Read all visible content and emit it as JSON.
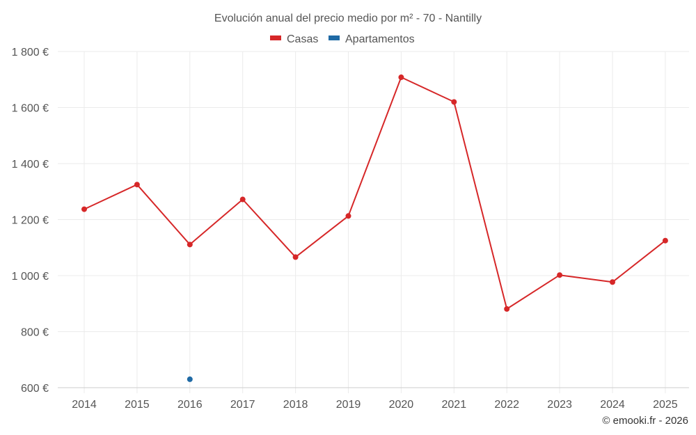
{
  "chart_data": {
    "type": "line",
    "title": "Evolución anual del precio medio por m² - 70 - Nantilly",
    "xlabel": "",
    "ylabel": "",
    "categories": [
      "2014",
      "2015",
      "2016",
      "2017",
      "2018",
      "2019",
      "2020",
      "2021",
      "2022",
      "2023",
      "2024",
      "2025"
    ],
    "ylim": [
      600,
      1800
    ],
    "yticks": [
      600,
      800,
      1000,
      1200,
      1400,
      1600,
      1800
    ],
    "ytick_labels": [
      "600 €",
      "800 €",
      "1 000 €",
      "1 200 €",
      "1 400 €",
      "1 600 €",
      "1 800 €"
    ],
    "grid": true,
    "legend_position": "top-center",
    "series": [
      {
        "name": "Casas",
        "color": "#d62728",
        "values": [
          1237,
          1325,
          1111,
          1272,
          1066,
          1213,
          1708,
          1620,
          881,
          1002,
          977,
          1125
        ]
      },
      {
        "name": "Apartamentos",
        "color": "#1f6aa5",
        "values": [
          null,
          null,
          630,
          null,
          null,
          null,
          null,
          null,
          null,
          null,
          null,
          null
        ]
      }
    ]
  },
  "credit": "© emooki.fr - 2026"
}
